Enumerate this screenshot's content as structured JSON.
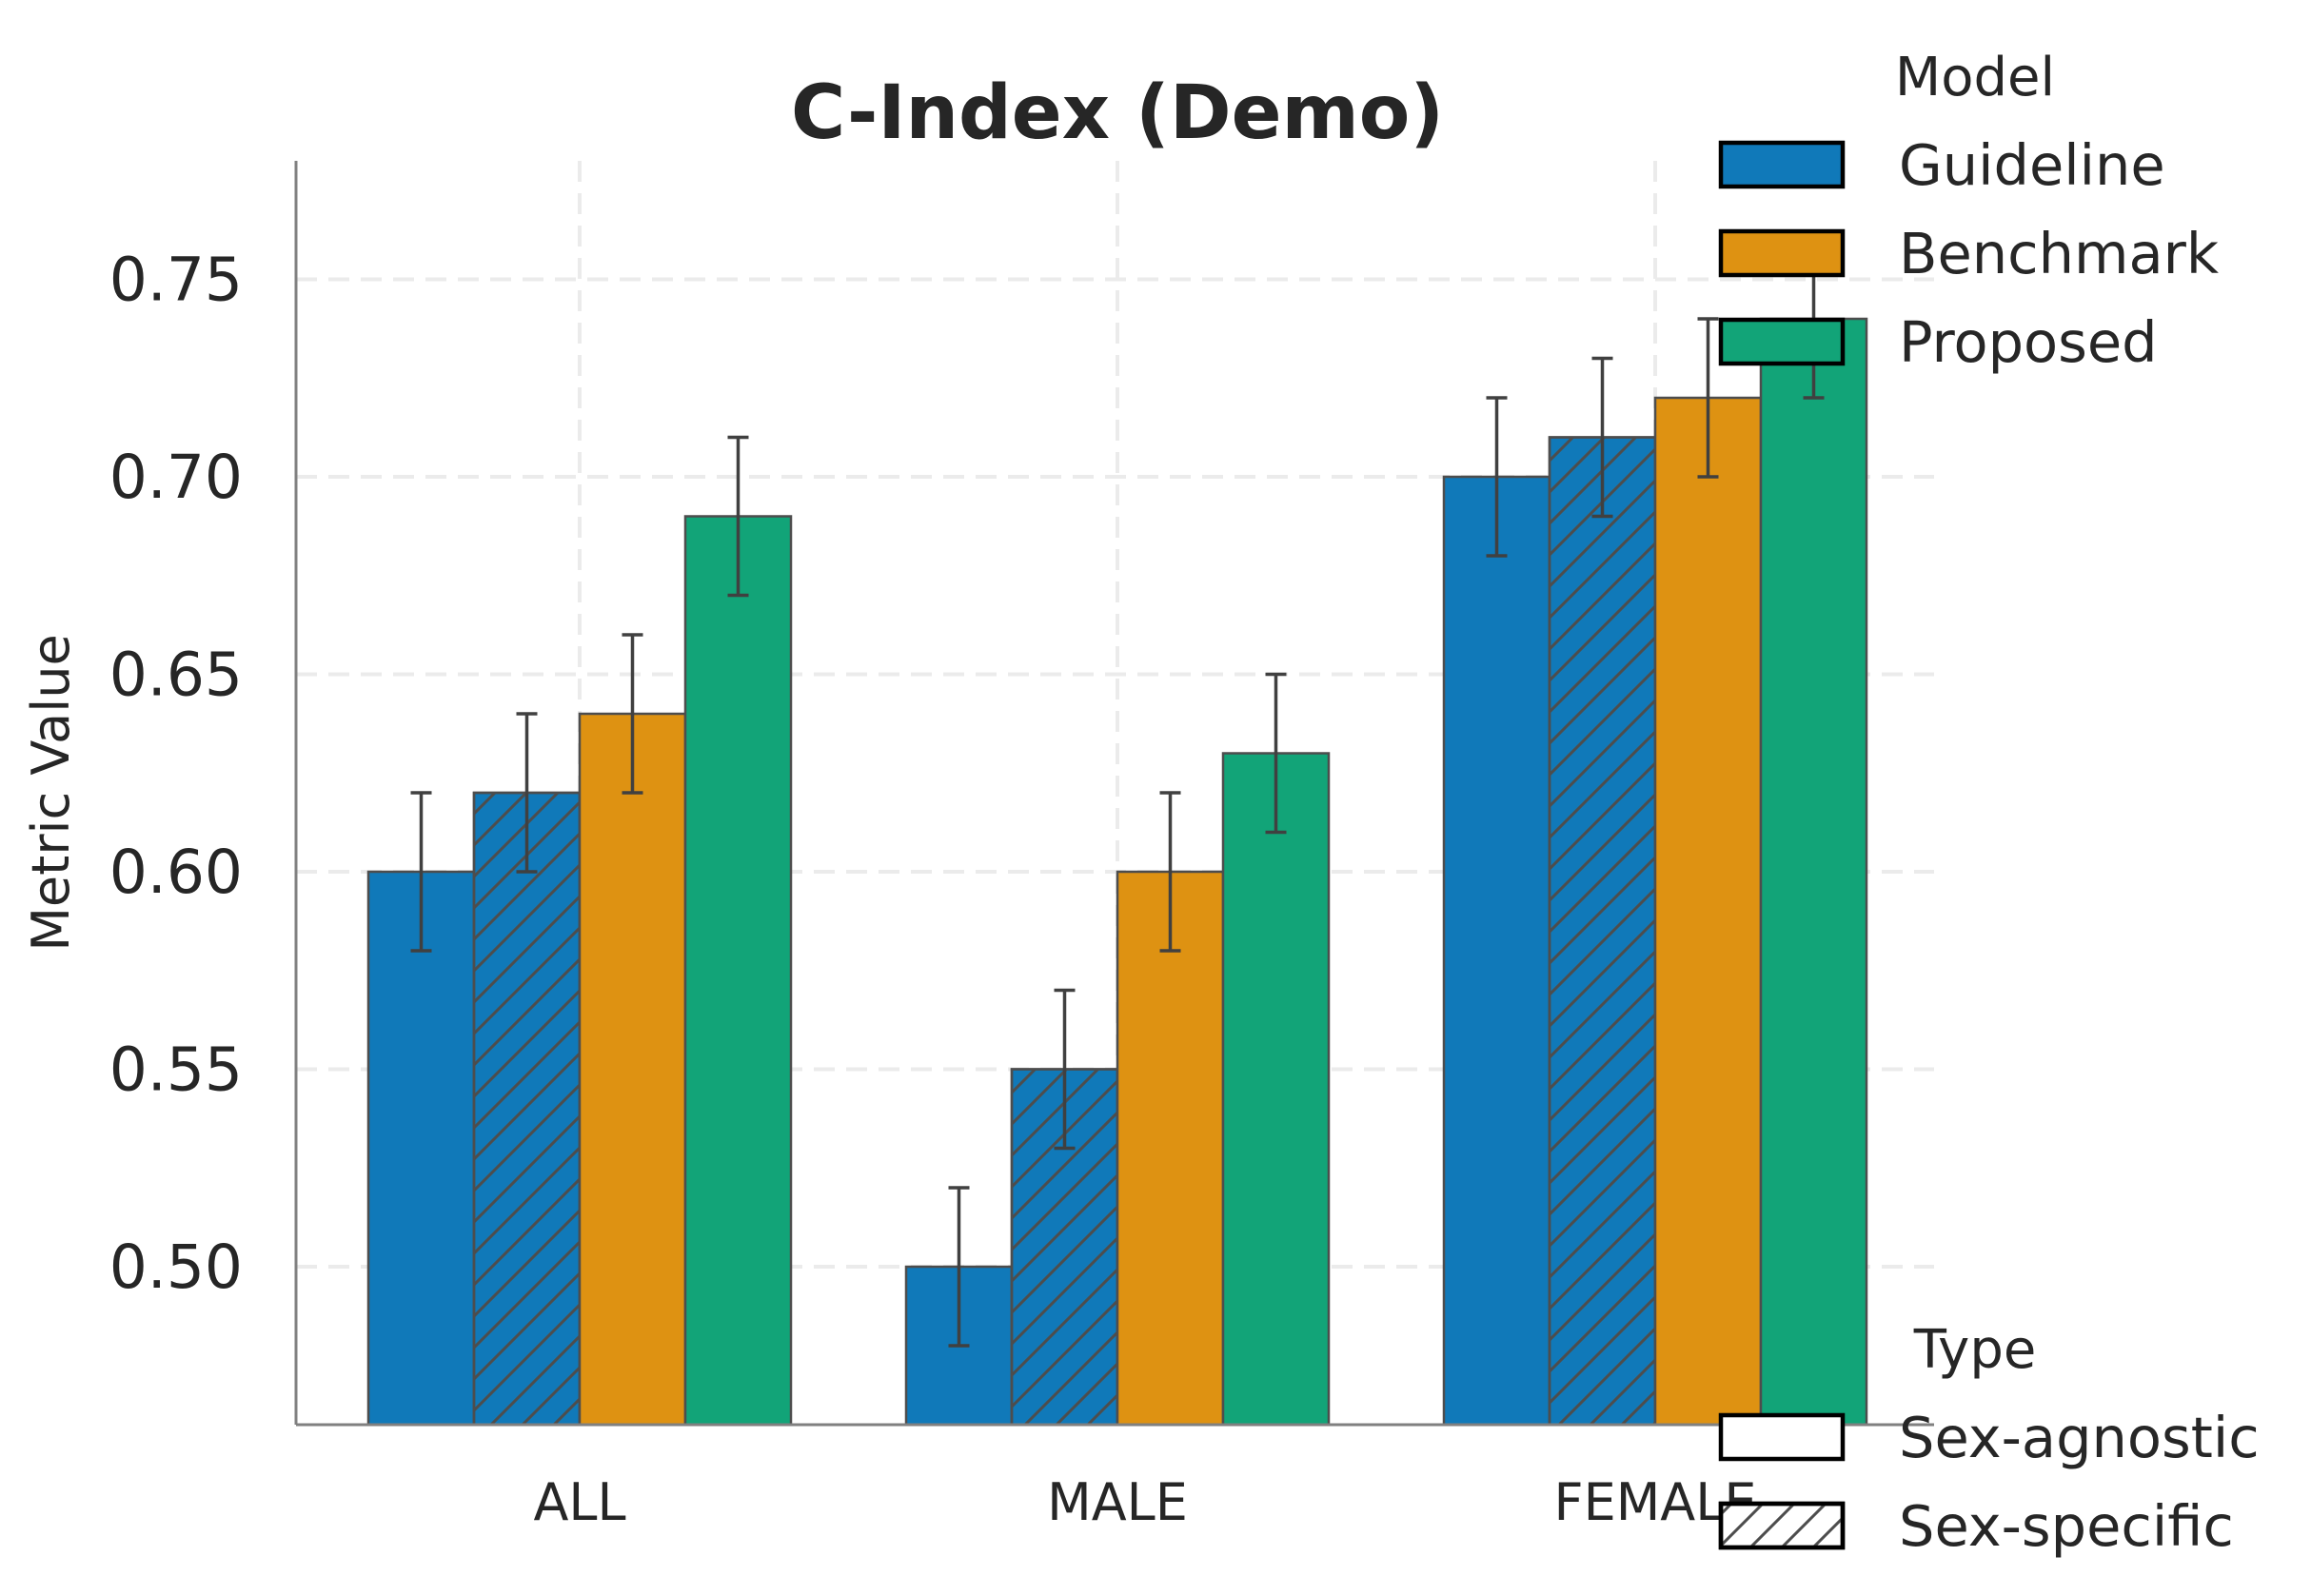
{
  "chart_data": {
    "type": "bar",
    "title": "C-Index (Demo)",
    "xlabel": "",
    "ylabel": "Metric Value",
    "ylim": [
      0.46,
      0.78
    ],
    "yticks": [
      "0.50",
      "0.55",
      "0.60",
      "0.65",
      "0.70",
      "0.75"
    ],
    "categories": [
      "ALL",
      "MALE",
      "FEMALE"
    ],
    "grid": true,
    "series": [
      {
        "model": "Guideline",
        "type": "Sex-agnostic",
        "values": [
          0.6,
          0.5,
          0.7
        ],
        "errors": [
          0.02,
          0.02,
          0.02
        ]
      },
      {
        "model": "Guideline",
        "type": "Sex-specific",
        "values": [
          0.62,
          0.55,
          0.71
        ],
        "errors": [
          0.02,
          0.02,
          0.02
        ]
      },
      {
        "model": "Benchmark",
        "type": "Sex-agnostic",
        "values": [
          0.64,
          0.6,
          0.72
        ],
        "errors": [
          0.02,
          0.02,
          0.02
        ]
      },
      {
        "model": "Proposed",
        "type": "Sex-agnostic",
        "values": [
          0.69,
          0.63,
          0.74
        ],
        "errors": [
          0.02,
          0.02,
          0.02
        ]
      }
    ],
    "colors": {
      "Guideline": "#1079b9",
      "Benchmark": "#de9212",
      "Proposed": "#12a478"
    },
    "legend_model": {
      "title": "Model",
      "placement": "upper-right",
      "entries": [
        {
          "label": "Guideline",
          "color": "#1079b9"
        },
        {
          "label": "Benchmark",
          "color": "#de9212"
        },
        {
          "label": "Proposed",
          "color": "#12a478"
        }
      ]
    },
    "legend_type": {
      "title": "Type",
      "placement": "lower-right",
      "entries": [
        {
          "label": "Sex-agnostic",
          "hatch": false
        },
        {
          "label": "Sex-specific",
          "hatch": true
        }
      ]
    }
  }
}
